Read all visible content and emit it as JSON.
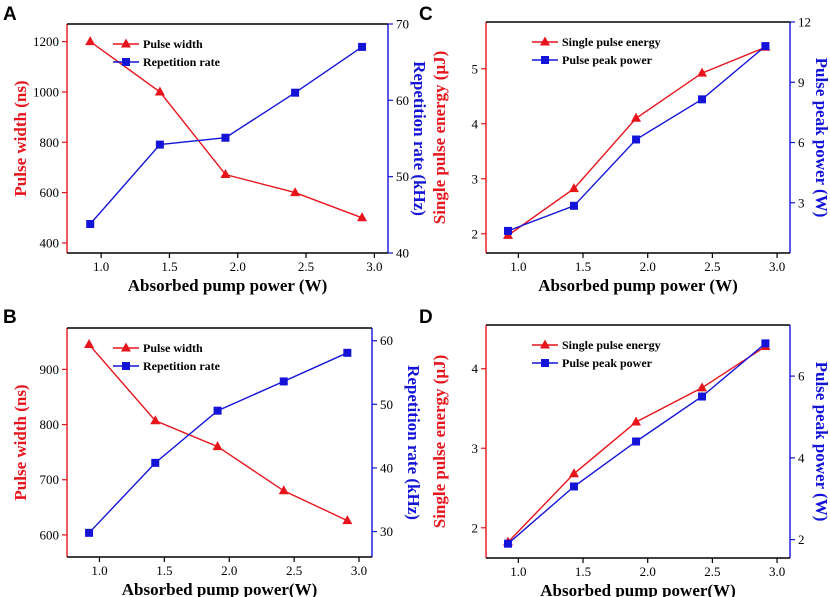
{
  "colors": {
    "left": "#e8141c",
    "right": "#1414d8",
    "axis": "#000000"
  },
  "chart_data": [
    {
      "panel": "A",
      "type": "line",
      "xlabel": "Absorbed pump power (W)",
      "ylabel_left": "Pulse width (ns)",
      "ylabel_right": "Repetition rate (kHz)",
      "xlim": [
        0.75,
        3.1
      ],
      "xticks": [
        1.0,
        1.5,
        2.0,
        2.5,
        3.0
      ],
      "ylim_left": [
        360,
        1270
      ],
      "yticks_left": [
        400,
        600,
        800,
        1000,
        1200
      ],
      "ylim_right": [
        40,
        70
      ],
      "yticks_right": [
        40,
        50,
        60,
        70
      ],
      "legend_position": "top-left",
      "series": [
        {
          "name": "Pulse width",
          "axis": "left",
          "marker": "triangle",
          "x": [
            0.92,
            1.43,
            1.91,
            2.42,
            2.91
          ],
          "values": [
            1200,
            1000,
            672,
            600,
            500
          ]
        },
        {
          "name": "Repetition rate",
          "axis": "right",
          "marker": "square",
          "x": [
            0.92,
            1.43,
            1.91,
            2.42,
            2.91
          ],
          "values": [
            43.8,
            54.2,
            55.1,
            61.0,
            67.0
          ]
        }
      ]
    },
    {
      "panel": "B",
      "type": "line",
      "xlabel": "Absorbed pump power(W)",
      "ylabel_left": "Pulse width (ns)",
      "ylabel_right": "Repetition rate (kHz)",
      "xlim": [
        0.75,
        3.1
      ],
      "xticks": [
        1.0,
        1.5,
        2.0,
        2.5,
        3.0
      ],
      "ylim_left": [
        560,
        975
      ],
      "yticks_left": [
        600,
        700,
        800,
        900
      ],
      "ylim_right": [
        26,
        62
      ],
      "yticks_right": [
        30,
        40,
        50,
        60
      ],
      "legend_position": "top-left",
      "series": [
        {
          "name": "Pulse width",
          "axis": "left",
          "marker": "triangle",
          "x": [
            0.92,
            1.43,
            1.91,
            2.42,
            2.91
          ],
          "values": [
            945,
            807,
            760,
            680,
            626
          ]
        },
        {
          "name": "Repetition rate",
          "axis": "right",
          "marker": "square",
          "x": [
            0.92,
            1.43,
            1.91,
            2.42,
            2.91
          ],
          "values": [
            29.8,
            40.8,
            49.0,
            53.6,
            58.1
          ]
        }
      ]
    },
    {
      "panel": "C",
      "type": "line",
      "xlabel": "Absorbed pump power (W)",
      "ylabel_left": "Single pulse energy (μJ)",
      "ylabel_right": "Pulse peak power (W)",
      "xlim": [
        0.75,
        3.1
      ],
      "xticks": [
        1.0,
        1.5,
        2.0,
        2.5,
        3.0
      ],
      "ylim_left": [
        1.65,
        5.85
      ],
      "yticks_left": [
        2,
        3,
        4,
        5
      ],
      "ylim_right": [
        0.5,
        12
      ],
      "yticks_right": [
        3,
        6,
        9,
        12
      ],
      "legend_position": "top-left",
      "series": [
        {
          "name": "Single pulse energy",
          "axis": "left",
          "marker": "triangle",
          "x": [
            0.92,
            1.43,
            1.91,
            2.42,
            2.91
          ],
          "values": [
            1.97,
            2.82,
            4.1,
            4.92,
            5.39
          ]
        },
        {
          "name": "Pulse peak power",
          "axis": "right",
          "marker": "square",
          "x": [
            0.92,
            1.43,
            1.91,
            2.42,
            2.91
          ],
          "values": [
            1.6,
            2.85,
            6.15,
            8.15,
            10.8
          ]
        }
      ]
    },
    {
      "panel": "D",
      "type": "line",
      "xlabel": "Absorbed pump power(W)",
      "ylabel_left": "Single pulse energy (μJ)",
      "ylabel_right": "Pulse peak power (W)",
      "xlim": [
        0.75,
        3.1
      ],
      "xticks": [
        1.0,
        1.5,
        2.0,
        2.5,
        3.0
      ],
      "ylim_left": [
        1.62,
        4.55
      ],
      "yticks_left": [
        2,
        3,
        4
      ],
      "ylim_right": [
        1.55,
        7.25
      ],
      "yticks_right": [
        2,
        4,
        6
      ],
      "legend_position": "top-left",
      "series": [
        {
          "name": "Single pulse energy",
          "axis": "left",
          "marker": "triangle",
          "x": [
            0.92,
            1.43,
            1.91,
            2.42,
            2.91
          ],
          "values": [
            1.82,
            2.68,
            3.33,
            3.76,
            4.28
          ]
        },
        {
          "name": "Pulse peak power",
          "axis": "right",
          "marker": "square",
          "x": [
            0.92,
            1.43,
            1.91,
            2.42,
            2.91
          ],
          "values": [
            1.9,
            3.3,
            4.4,
            5.5,
            6.8
          ]
        }
      ]
    }
  ]
}
